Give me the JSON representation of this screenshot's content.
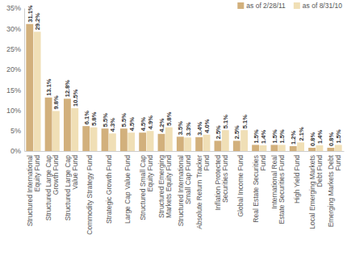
{
  "chart_data": {
    "type": "bar",
    "categories": [
      "Structured International Equity Fund",
      "Structured Large Cap Growth Fund",
      "Structured Large Cap Value Fund",
      "Commodity Strategy Fund",
      "Strategic Growth Fund",
      "Large Cap Value Fund",
      "Structured Small Cap Equity Fund",
      "Structured Emerging Markets Equity Fund",
      "Structured International Small Cap Fund",
      "Absolute Return Tracker Fund",
      "Inflation Protected Securities Fund",
      "Global Income Fund",
      "Real Estate Securities Fund",
      "International Real Estate Securities Fund",
      "High Yield Fund",
      "Local Emerging Markets Debt Fund",
      "Emerging Markets Debt Fund"
    ],
    "series": [
      {
        "name": "as of 2/28/11",
        "color": "#d2b07c",
        "values": [
          31.1,
          13.1,
          12.8,
          6.1,
          5.5,
          5.5,
          4.5,
          4.2,
          3.5,
          3.4,
          2.5,
          2.5,
          1.5,
          1.5,
          1.2,
          0.8,
          0.8
        ],
        "value_labels": [
          "31.1%",
          "13.1%",
          "12.8%",
          "6.1%",
          "5.5%",
          "5.5%",
          "4.5%",
          "4.2%",
          "3.5%",
          "3.4%",
          "2.5%",
          "2.5%",
          "1.5%",
          "1.5%",
          "1.2%",
          "0.8%",
          "0.8%"
        ]
      },
      {
        "name": "as of 8/31/10",
        "color": "#f0dfb6",
        "values": [
          29.2,
          9.8,
          10.5,
          5.8,
          4.3,
          4.5,
          4.9,
          5.8,
          3.3,
          4.0,
          5.1,
          5.1,
          1.4,
          1.5,
          2.1,
          1.4,
          1.5
        ],
        "value_labels": [
          "29.2%",
          "9.8%",
          "10.5%",
          "5.8%",
          "4.3%",
          "4.5%",
          "4.9%",
          "5.8%",
          "3.3%",
          "4.0%",
          "5.1%",
          "5.1%",
          "1.4%",
          "1.5%",
          "2.1%",
          "1.4%",
          "1.5%"
        ]
      }
    ],
    "ylim": [
      0,
      35
    ],
    "yticks": [
      {
        "value": 0,
        "label": "0%"
      },
      {
        "value": 5,
        "label": "5%"
      },
      {
        "value": 10,
        "label": "10%"
      },
      {
        "value": 15,
        "label": "15%"
      },
      {
        "value": 20,
        "label": "20%"
      },
      {
        "value": 25,
        "label": "25%"
      },
      {
        "value": 30,
        "label": "30%"
      },
      {
        "value": 35,
        "label": "35%"
      }
    ],
    "grid": false,
    "legend": "top-right",
    "data_labels": true
  }
}
